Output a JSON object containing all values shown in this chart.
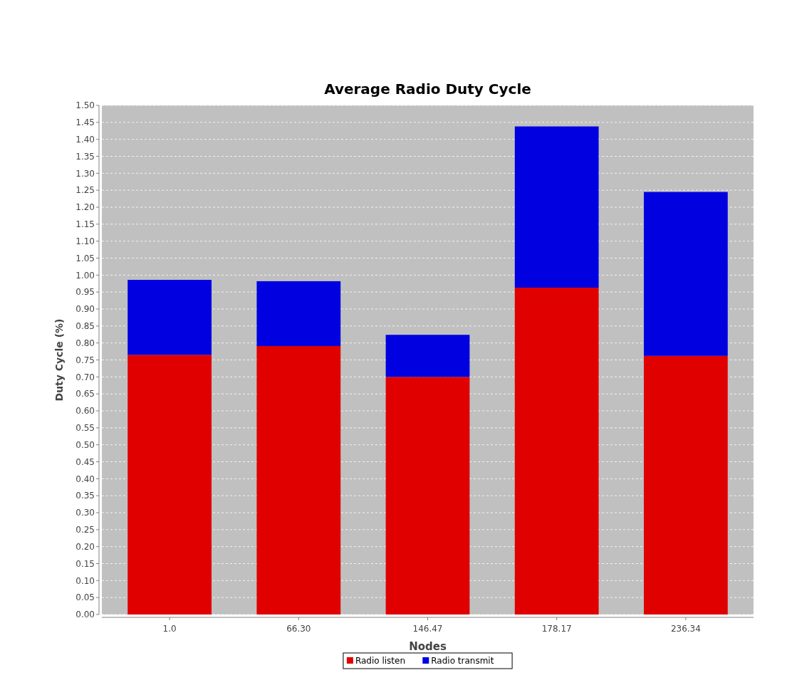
{
  "chart_data": {
    "type": "bar",
    "title": "Average Radio Duty Cycle",
    "xlabel": "Nodes",
    "ylabel": "Duty Cycle (%)",
    "categories": [
      "1.0",
      "66.30",
      "146.47",
      "178.17",
      "236.34"
    ],
    "stacked": true,
    "series": [
      {
        "name": "Radio listen",
        "color": "#e00000",
        "values": [
          0.765,
          0.791,
          0.7,
          0.963,
          0.762
        ]
      },
      {
        "name": "Radio transmit",
        "color": "#0000e0",
        "values": [
          0.221,
          0.191,
          0.124,
          0.475,
          0.483
        ]
      }
    ],
    "ylim": [
      0,
      1.5
    ],
    "yticks": [
      {
        "value": 0,
        "label": "0.00"
      },
      {
        "value": 0.05,
        "label": "0.05"
      },
      {
        "value": 0.1,
        "label": "0.10"
      },
      {
        "value": 0.15,
        "label": "0.15"
      },
      {
        "value": 0.2,
        "label": "0.20"
      },
      {
        "value": 0.25,
        "label": "0.25"
      },
      {
        "value": 0.3,
        "label": "0.30"
      },
      {
        "value": 0.35,
        "label": "0.35"
      },
      {
        "value": 0.4,
        "label": "0.40"
      },
      {
        "value": 0.45,
        "label": "0.45"
      },
      {
        "value": 0.5,
        "label": "0.50"
      },
      {
        "value": 0.55,
        "label": "0.55"
      },
      {
        "value": 0.6,
        "label": "0.60"
      },
      {
        "value": 0.65,
        "label": "0.65"
      },
      {
        "value": 0.7,
        "label": "0.70"
      },
      {
        "value": 0.75,
        "label": "0.75"
      },
      {
        "value": 0.8,
        "label": "0.80"
      },
      {
        "value": 0.85,
        "label": "0.85"
      },
      {
        "value": 0.9,
        "label": "0.90"
      },
      {
        "value": 0.95,
        "label": "0.95"
      },
      {
        "value": 1,
        "label": "1.00"
      },
      {
        "value": 1.05,
        "label": "1.05"
      },
      {
        "value": 1.1,
        "label": "1.10"
      },
      {
        "value": 1.15,
        "label": "1.15"
      },
      {
        "value": 1.2,
        "label": "1.20"
      },
      {
        "value": 1.25,
        "label": "1.25"
      },
      {
        "value": 1.3,
        "label": "1.30"
      },
      {
        "value": 1.35,
        "label": "1.35"
      },
      {
        "value": 1.4,
        "label": "1.40"
      },
      {
        "value": 1.45,
        "label": "1.45"
      },
      {
        "value": 1.5,
        "label": "1.50"
      }
    ],
    "grid": "y",
    "legend": "bottom"
  }
}
